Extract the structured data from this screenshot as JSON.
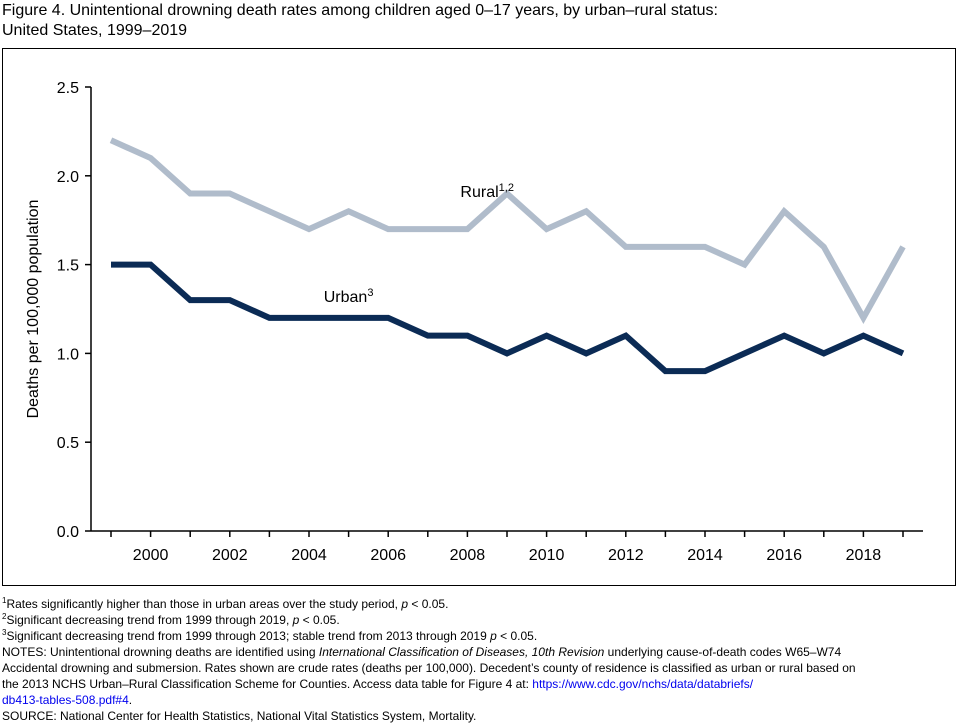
{
  "title": {
    "line1": "Figure 4. Unintentional drowning death rates among children aged 0–17 years, by urban–rural status:",
    "line2": "United States, 1999–2019"
  },
  "chart_data": {
    "type": "line",
    "xlabel": "",
    "ylabel": "Deaths per 100,000 population",
    "xlim": [
      1999,
      2019
    ],
    "ylim": [
      0,
      2.5
    ],
    "yticks": [
      0.0,
      0.5,
      1.0,
      1.5,
      2.0,
      2.5
    ],
    "ytick_labels": [
      "0.0",
      "0.5",
      "1.0",
      "1.5",
      "2.0",
      "2.5"
    ],
    "xtick_labels": [
      "2000",
      "2002",
      "2004",
      "2006",
      "2008",
      "2010",
      "2012",
      "2014",
      "2016",
      "2018"
    ],
    "x": [
      1999,
      2000,
      2001,
      2002,
      2003,
      2004,
      2005,
      2006,
      2007,
      2008,
      2009,
      2010,
      2011,
      2012,
      2013,
      2014,
      2015,
      2016,
      2017,
      2018,
      2019
    ],
    "series": [
      {
        "name": "Rural",
        "label_sup": "1,2",
        "color": "#b0bccb",
        "values": [
          2.2,
          2.1,
          1.9,
          1.9,
          1.8,
          1.7,
          1.8,
          1.7,
          1.7,
          1.7,
          1.9,
          1.7,
          1.8,
          1.6,
          1.6,
          1.6,
          1.5,
          1.8,
          1.6,
          1.2,
          1.6
        ]
      },
      {
        "name": "Urban",
        "label_sup": "3",
        "color": "#0b2b55",
        "values": [
          1.5,
          1.5,
          1.3,
          1.3,
          1.2,
          1.2,
          1.2,
          1.2,
          1.1,
          1.1,
          1.0,
          1.1,
          1.0,
          1.1,
          0.9,
          0.9,
          1.0,
          1.1,
          1.0,
          1.1,
          1.0
        ]
      }
    ]
  },
  "notes": {
    "fn1_sup": "1",
    "fn1_a": "Rates significantly higher than those in urban areas over the study period, ",
    "fn1_p": "p",
    "fn1_b": " < 0.05.",
    "fn2_sup": "2",
    "fn2_a": "Significant decreasing trend from 1999 through 2019, ",
    "fn2_p": "p",
    "fn2_b": " < 0.05.",
    "fn3_sup": "3",
    "fn3_a": "Significant decreasing trend from 1999 through 2013; stable trend from 2013 through 2019 ",
    "fn3_p": "p",
    "fn3_b": " < 0.05.",
    "notes_a": "NOTES: Unintentional drowning deaths are identified using ",
    "notes_icd": "International Classification of Diseases, 10th Revision",
    "notes_b": " underlying cause-of-death codes W65–W74",
    "notes_line2": "Accidental drowning and submersion. Rates shown are crude rates (deaths per 100,000). Decedent’s county of residence is classified as urban or rural based on",
    "notes_line3_a": "the 2013 NCHS Urban–Rural Classification Scheme for Counties. Access data table for Figure 4 at: ",
    "link_part1": "https://www.cdc.gov/nchs/data/databriefs/",
    "link_part2": "db413-tables-508.pdf#4",
    "link_end": ".",
    "source": "SOURCE: National Center for Health Statistics, National Vital Statistics System, Mortality."
  }
}
